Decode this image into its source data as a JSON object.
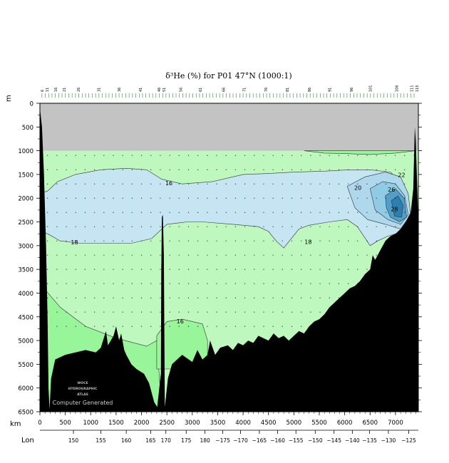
{
  "chart_data": {
    "type": "heatmap",
    "title": "δ³He (%) for P01 47°N (1000:1)",
    "ylabel": "m",
    "xlabel": "km",
    "lon_label": "Lon",
    "ylim": [
      0,
      6500
    ],
    "xlim": [
      0,
      7450
    ],
    "y_ticks": [
      0,
      500,
      1000,
      1500,
      2000,
      2500,
      3000,
      3500,
      4000,
      4500,
      5000,
      5500,
      6000,
      6500
    ],
    "x_ticks": [
      0,
      500,
      1000,
      1500,
      2000,
      2500,
      3000,
      3500,
      4000,
      4500,
      5000,
      5500,
      6000,
      6500,
      7000
    ],
    "lon_ticks": [
      {
        "label": "150",
        "km": 660
      },
      {
        "label": "155",
        "km": 1200
      },
      {
        "label": "160",
        "km": 1700
      },
      {
        "label": "165",
        "km": 2180
      },
      {
        "label": "170",
        "km": 2480
      },
      {
        "label": "175",
        "km": 2880
      },
      {
        "label": "180",
        "km": 3250
      },
      {
        "label": "−175",
        "km": 3600
      },
      {
        "label": "−170",
        "km": 3950
      },
      {
        "label": "−165",
        "km": 4320
      },
      {
        "label": "−160",
        "km": 4680
      },
      {
        "label": "−155",
        "km": 5040
      },
      {
        "label": "−150",
        "km": 5420
      },
      {
        "label": "−145",
        "km": 5790
      },
      {
        "label": "−140",
        "km": 6150
      },
      {
        "label": "−135",
        "km": 6490
      },
      {
        "label": "−130",
        "km": 6860
      },
      {
        "label": "−125",
        "km": 7260
      }
    ],
    "station_labels": [
      {
        "label": "6",
        "km": 40
      },
      {
        "label": "11",
        "km": 140
      },
      {
        "label": "16",
        "km": 310
      },
      {
        "label": "21",
        "km": 480
      },
      {
        "label": "26",
        "km": 760
      },
      {
        "label": "31",
        "km": 1160
      },
      {
        "label": "36",
        "km": 1560
      },
      {
        "label": "41",
        "km": 1980
      },
      {
        "label": "46",
        "km": 2340
      },
      {
        "label": "51",
        "km": 2440
      },
      {
        "label": "56",
        "km": 2770
      },
      {
        "label": "61",
        "km": 3160
      },
      {
        "label": "66",
        "km": 3610
      },
      {
        "label": "71",
        "km": 4020
      },
      {
        "label": "76",
        "km": 4450
      },
      {
        "label": "81",
        "km": 4870
      },
      {
        "label": "86",
        "km": 5300
      },
      {
        "label": "91",
        "km": 5700
      },
      {
        "label": "96",
        "km": 6130
      },
      {
        "label": "101",
        "km": 6500
      },
      {
        "label": "106",
        "km": 7020
      },
      {
        "label": "111",
        "km": 7320
      },
      {
        "label": "115",
        "km": 7420
      }
    ],
    "contour_labels": [
      {
        "label": "16",
        "km": 2540,
        "depth": 1680
      },
      {
        "label": "18",
        "km": 680,
        "depth": 2930
      },
      {
        "label": "18",
        "km": 5280,
        "depth": 2920
      },
      {
        "label": "16",
        "km": 2760,
        "depth": 4590
      },
      {
        "label": "20",
        "km": 6260,
        "depth": 1780
      },
      {
        "label": "22",
        "km": 7120,
        "depth": 1510
      },
      {
        "label": "26",
        "km": 6920,
        "depth": 1820
      },
      {
        "label": "28",
        "km": 6980,
        "depth": 2230
      }
    ],
    "watermark": [
      "WOCE",
      "HYDROGRAPHIC",
      "ATLAS"
    ],
    "generated_label": "Computer Generated",
    "colors": {
      "masked": "#c3c3c3",
      "band_14_16": "#99f599",
      "band_16_18": "#bff8bf",
      "band_18_20": "#c5e5f2",
      "band_20_22": "#afd8ec",
      "band_22_26": "#8fcbe4",
      "band_26_28": "#4f9fc8",
      "band_28_30": "#2d7fb0",
      "bottom": "#000000"
    }
  }
}
